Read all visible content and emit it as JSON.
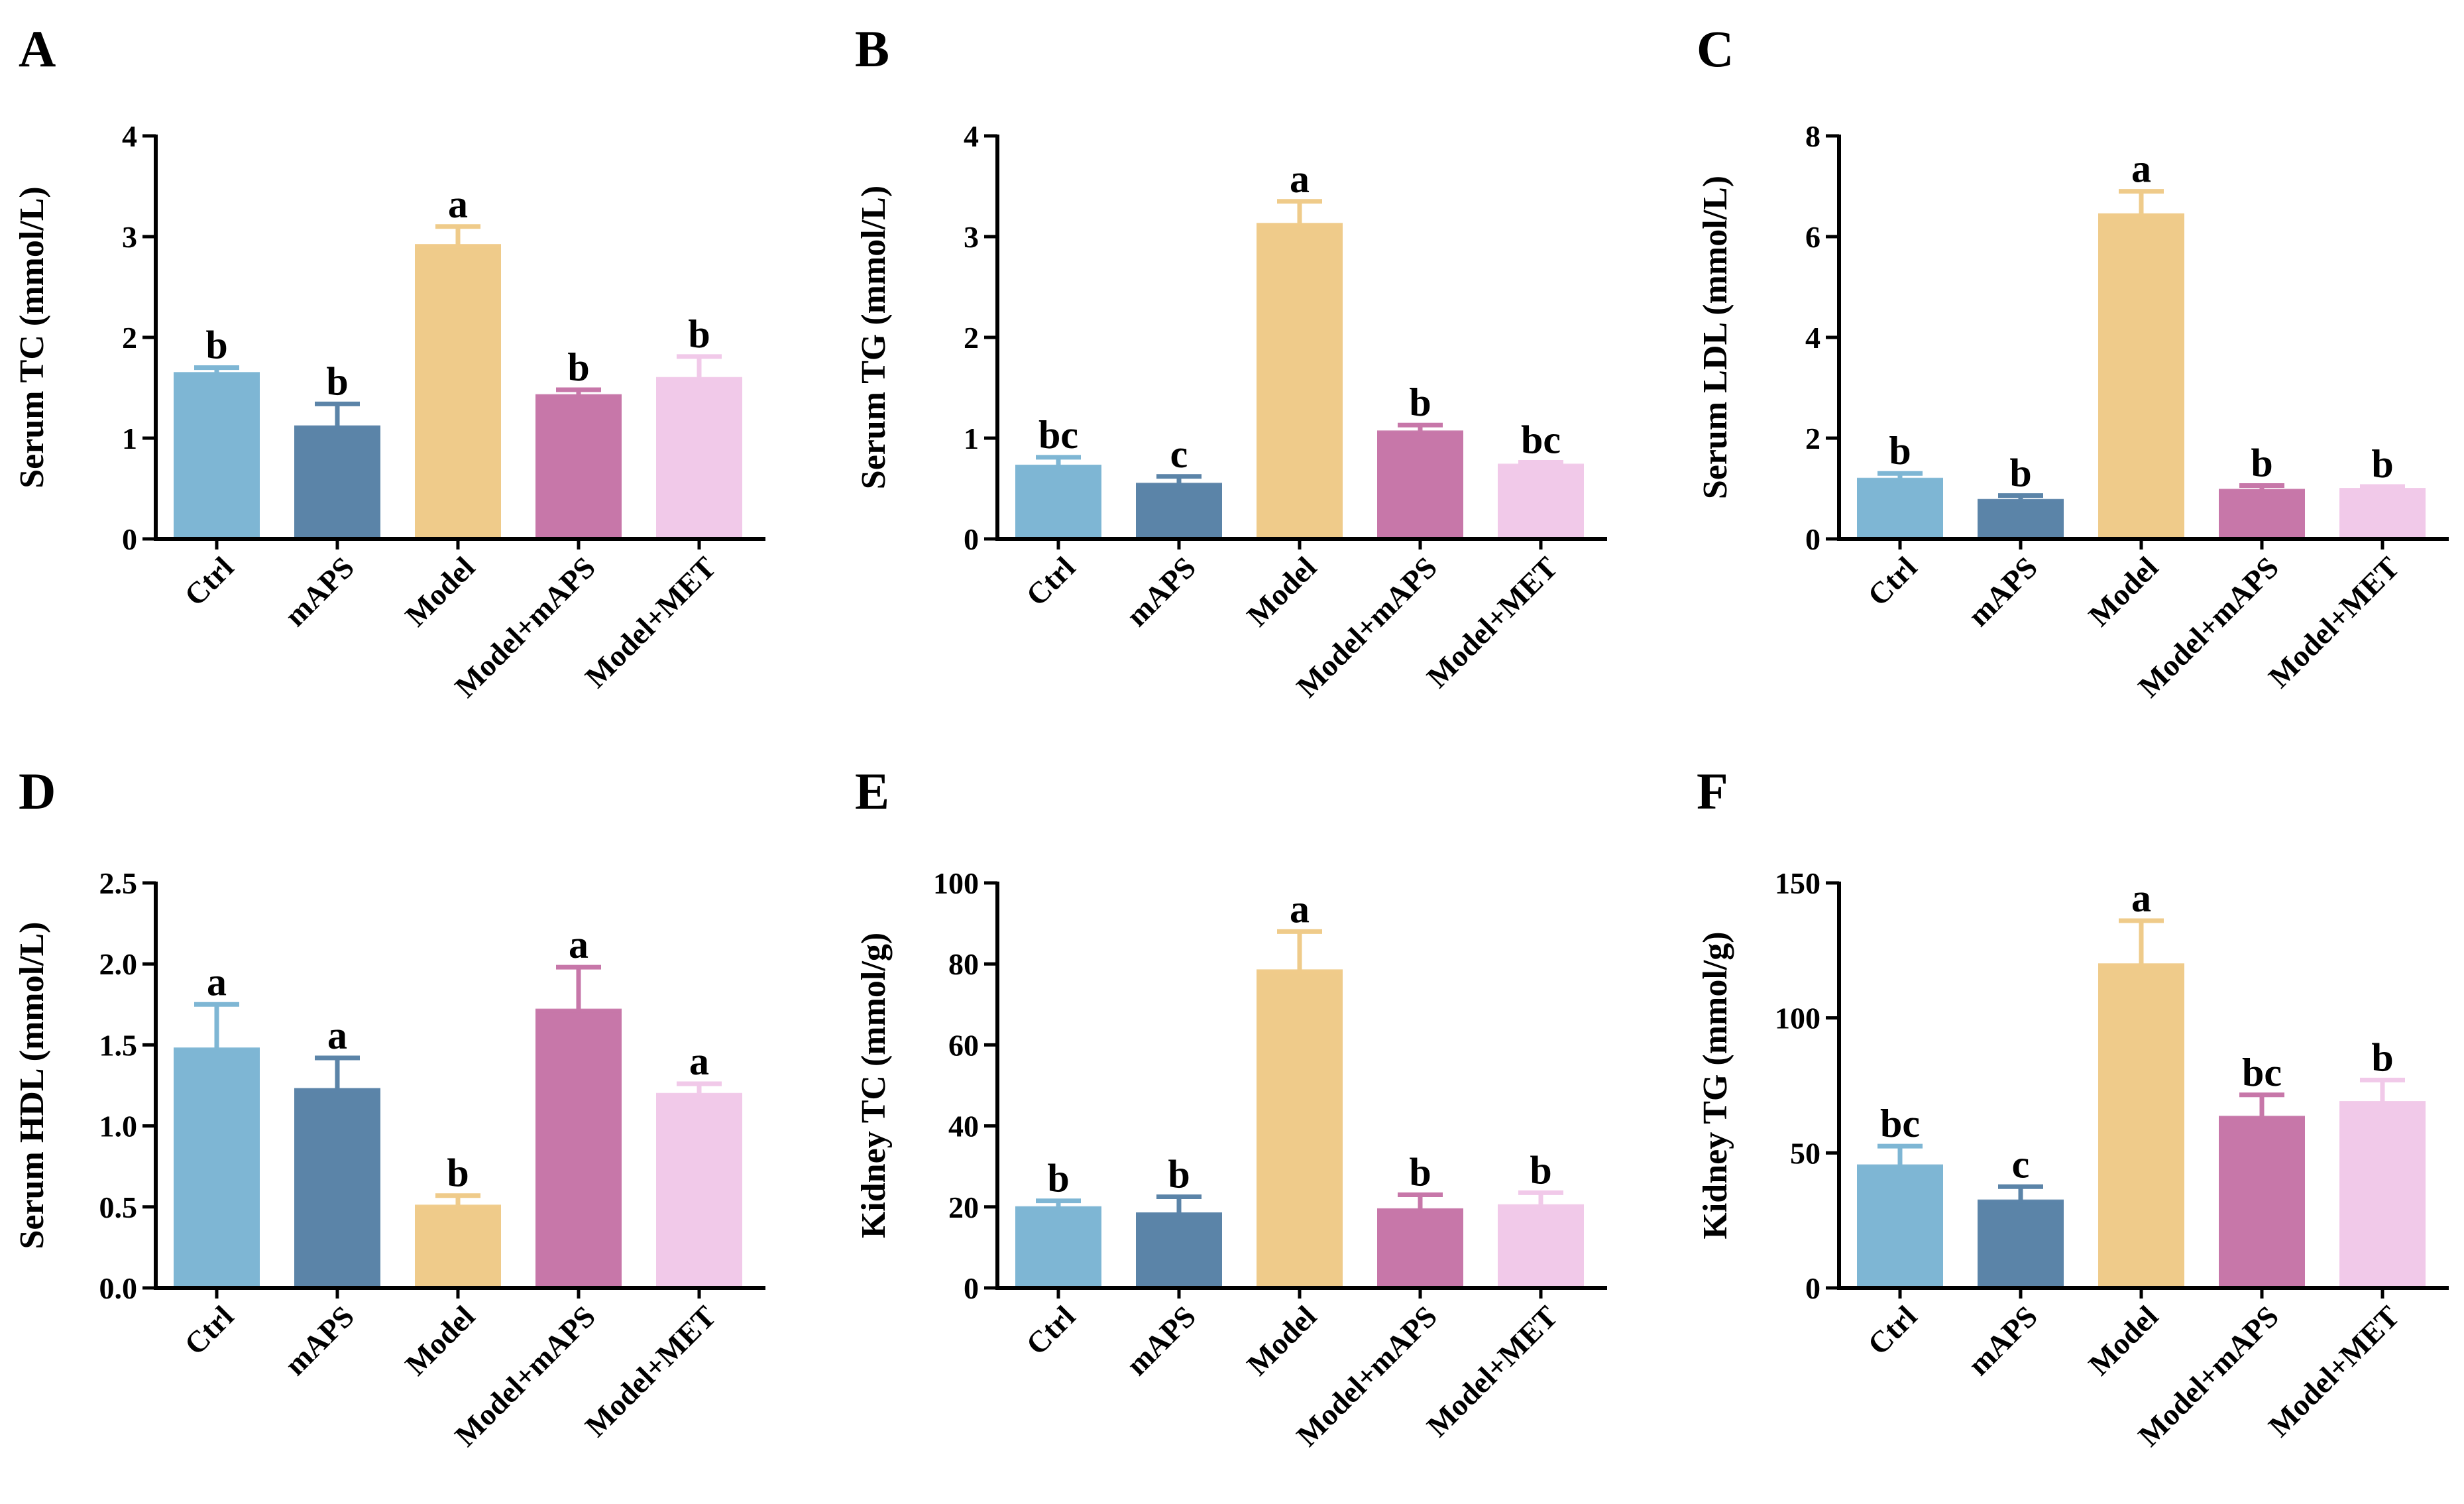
{
  "colors": {
    "Ctrl": "#7eb6d4",
    "mAPS": "#5b84a8",
    "Model": "#efcb8a",
    "Model+mAPS": "#c777a9",
    "Model+MET": "#f1c9e9"
  },
  "chart_data": [
    {
      "panel": "A",
      "type": "bar",
      "ylabel": "Serum TC (mmol/L)",
      "categories": [
        "Ctrl",
        "mAPS",
        "Model",
        "Model+mAPS",
        "Model+MET"
      ],
      "values": [
        1.65,
        1.12,
        2.92,
        1.43,
        1.6
      ],
      "errors": [
        0.05,
        0.22,
        0.18,
        0.05,
        0.21
      ],
      "significance": [
        "b",
        "b",
        "a",
        "b",
        "b"
      ],
      "ylim": [
        0,
        4
      ],
      "yticks": [
        0,
        1,
        2,
        3,
        4
      ],
      "ytick_labels": [
        "0",
        "1",
        "2",
        "3",
        "4"
      ]
    },
    {
      "panel": "B",
      "type": "bar",
      "ylabel": "Serum TG (mmol/L)",
      "categories": [
        "Ctrl",
        "mAPS",
        "Model",
        "Model+mAPS",
        "Model+MET"
      ],
      "values": [
        0.73,
        0.55,
        3.13,
        1.07,
        0.74
      ],
      "errors": [
        0.08,
        0.07,
        0.22,
        0.06,
        0.02
      ],
      "significance": [
        "bc",
        "c",
        "a",
        "b",
        "bc"
      ],
      "ylim": [
        0,
        4
      ],
      "yticks": [
        0,
        1,
        2,
        3,
        4
      ],
      "ytick_labels": [
        "0",
        "1",
        "2",
        "3",
        "4"
      ]
    },
    {
      "panel": "C",
      "type": "bar",
      "ylabel": "Serum LDL (mmol/L)",
      "categories": [
        "Ctrl",
        "mAPS",
        "Model",
        "Model+mAPS",
        "Model+MET"
      ],
      "values": [
        1.2,
        0.78,
        6.45,
        0.98,
        1.0
      ],
      "errors": [
        0.1,
        0.08,
        0.45,
        0.08,
        0.04
      ],
      "significance": [
        "b",
        "b",
        "a",
        "b",
        "b"
      ],
      "ylim": [
        0,
        8
      ],
      "yticks": [
        0,
        2,
        4,
        6,
        8
      ],
      "ytick_labels": [
        "0",
        "2",
        "4",
        "6",
        "8"
      ]
    },
    {
      "panel": "D",
      "type": "bar",
      "ylabel": "Serum HDL (mmol/L)",
      "categories": [
        "Ctrl",
        "mAPS",
        "Model",
        "Model+mAPS",
        "Model+MET"
      ],
      "values": [
        1.48,
        1.23,
        0.51,
        1.72,
        1.2
      ],
      "errors": [
        0.27,
        0.19,
        0.06,
        0.26,
        0.06
      ],
      "significance": [
        "a",
        "a",
        "b",
        "a",
        "a"
      ],
      "ylim": [
        0,
        2.5
      ],
      "yticks": [
        0,
        0.5,
        1,
        1.5,
        2,
        2.5
      ],
      "ytick_labels": [
        "0.0",
        "0.5",
        "1.0",
        "1.5",
        "2.0",
        "2.5"
      ]
    },
    {
      "panel": "E",
      "type": "bar",
      "ylabel": "Kidney TC (mmol/g)",
      "categories": [
        "Ctrl",
        "mAPS",
        "Model",
        "Model+mAPS",
        "Model+MET"
      ],
      "values": [
        20,
        18.5,
        78.5,
        19.5,
        20.5
      ],
      "errors": [
        1.5,
        4,
        9.5,
        3.5,
        3
      ],
      "significance": [
        "b",
        "b",
        "a",
        "b",
        "b"
      ],
      "ylim": [
        0,
        100
      ],
      "yticks": [
        0,
        20,
        40,
        60,
        80,
        100
      ],
      "ytick_labels": [
        "0",
        "20",
        "40",
        "60",
        "80",
        "100"
      ]
    },
    {
      "panel": "F",
      "type": "bar",
      "ylabel": "Kidney TG (mmol/g)",
      "categories": [
        "Ctrl",
        "mAPS",
        "Model",
        "Model+mAPS",
        "Model+MET"
      ],
      "values": [
        45.5,
        32.5,
        120,
        63.5,
        69
      ],
      "errors": [
        7,
        5,
        16,
        8,
        8
      ],
      "significance": [
        "bc",
        "c",
        "a",
        "bc",
        "b"
      ],
      "ylim": [
        0,
        150
      ],
      "yticks": [
        0,
        50,
        100,
        150
      ],
      "ytick_labels": [
        "0",
        "50",
        "100",
        "150"
      ]
    }
  ]
}
